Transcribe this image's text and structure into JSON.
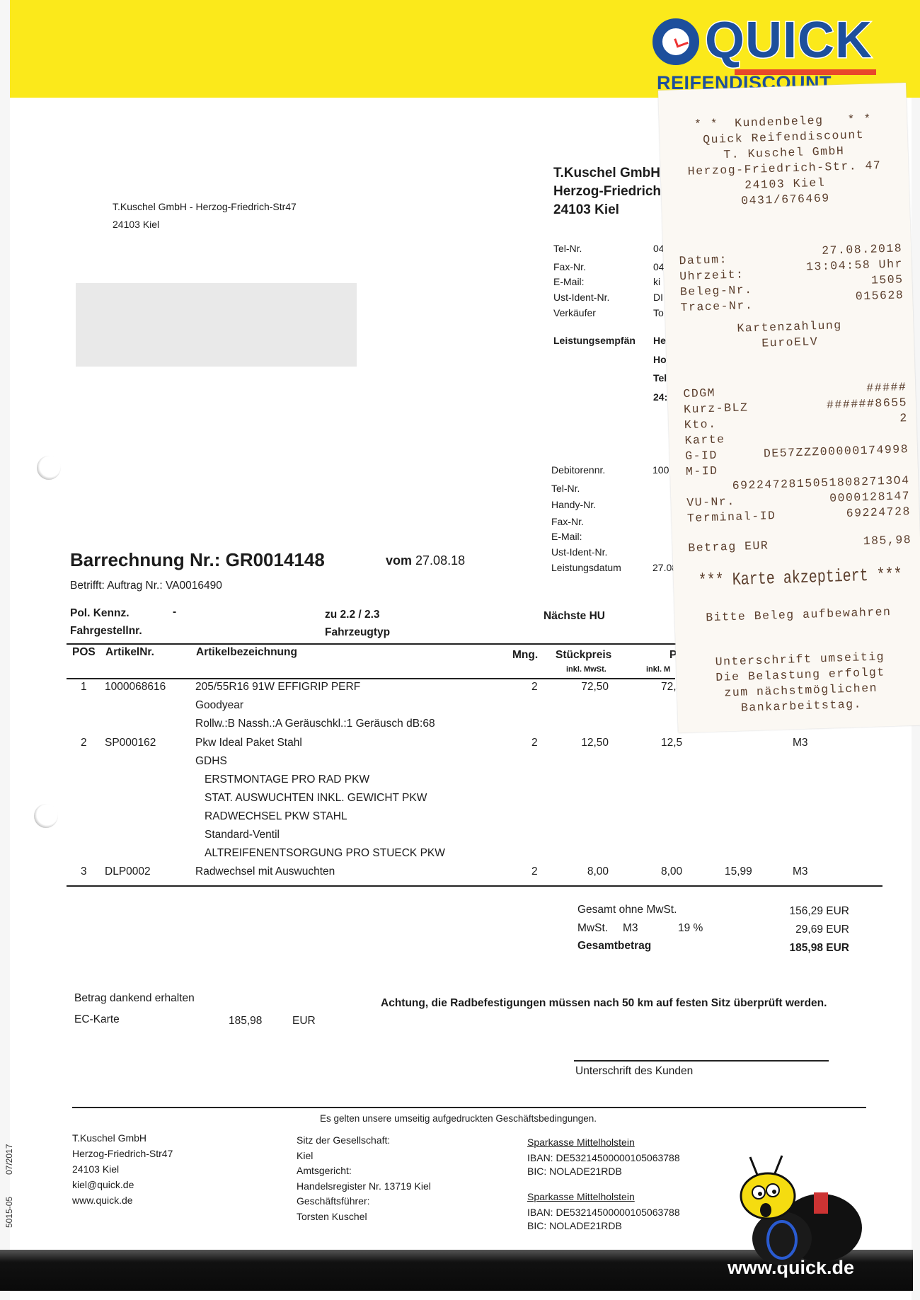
{
  "brand": {
    "logo_title": "QUICK",
    "logo_subtitle": "REIFENDISCOUNT",
    "website": "www.quick.de",
    "colors": {
      "yellow": "#fbe91b",
      "blue": "#1d4f9c",
      "red": "#e8482a"
    }
  },
  "sender_line": {
    "line1": "T.Kuschel GmbH - Herzog-Friedrich-Str47",
    "line2": "24103 Kiel"
  },
  "company": {
    "name": "T.Kuschel GmbH",
    "street": "Herzog-Friedrich",
    "city": "24103 Kiel"
  },
  "contact": [
    {
      "label": "Tel-Nr.",
      "value": "04"
    },
    {
      "label": "Fax-Nr.",
      "value": "04"
    },
    {
      "label": "E-Mail:",
      "value": "ki"
    },
    {
      "label": "Ust-Ident-Nr.",
      "value": "DI"
    },
    {
      "label": "Verkäufer",
      "value": "To"
    }
  ],
  "recipient": {
    "label": "Leistungsempfän",
    "lines": [
      "He",
      "Ho",
      "Tel",
      "24:"
    ]
  },
  "customer": [
    {
      "label": "Debitorennr.",
      "value": "100"
    },
    {
      "label": "Tel-Nr.",
      "value": ""
    },
    {
      "label": "Handy-Nr.",
      "value": ""
    },
    {
      "label": "Fax-Nr.",
      "value": ""
    },
    {
      "label": "E-Mail:",
      "value": ""
    },
    {
      "label": "Ust-Ident-Nr.",
      "value": ""
    },
    {
      "label": "Leistungsdatum",
      "value": "27.08"
    }
  ],
  "invoice": {
    "title": "Barrechnung Nr.: GR0014148",
    "vom_label": "vom",
    "date": "27.08.18",
    "betrifft": "Betrifft: Auftrag Nr.: VA0016490",
    "pol_kennz_label": "Pol. Kennz.",
    "pol_kennz_value": "-",
    "fahrgestell_label": "Fahrgestellnr.",
    "zu_label": "zu 2.2 / 2.3",
    "fahrzeugtyp_label": "Fahrzeugtyp",
    "naechste_hu_label": "Nächste HU"
  },
  "table": {
    "headers": {
      "pos": "POS",
      "artikelnr": "ArtikelNr.",
      "bez": "Artikelbezeichnung",
      "mng": "Mng.",
      "stueckpreis": "Stückpreis",
      "stueckpreis_sub": "inkl. MwSt.",
      "preis": "P",
      "preis_sub": "inkl. M"
    },
    "rows": [
      {
        "pos": "1",
        "artikelnr": "1000068616",
        "bez": "205/55R16 91W EFFIGRIP PERF",
        "mng": "2",
        "stueckpreis": "72,50",
        "preis": "72,5",
        "gesamt": "",
        "mwst": "",
        "details": [
          "Goodyear",
          "Rollw.:B  Nassh.:A  Geräuschkl.:1  Geräusch dB:68"
        ],
        "subitems": []
      },
      {
        "pos": "2",
        "artikelnr": "SP000162",
        "bez": "Pkw Ideal Paket Stahl",
        "mng": "2",
        "stueckpreis": "12,50",
        "preis": "12,5",
        "gesamt": "",
        "mwst": "M3",
        "details": [
          "GDHS"
        ],
        "subitems": [
          "ERSTMONTAGE PRO RAD PKW",
          "STAT. AUSWUCHTEN INKL. GEWICHT PKW",
          "RADWECHSEL PKW STAHL",
          "Standard-Ventil",
          "ALTREIFENENTSORGUNG PRO STUECK PKW"
        ]
      },
      {
        "pos": "3",
        "artikelnr": "DLP0002",
        "bez": "Radwechsel mit Auswuchten",
        "mng": "2",
        "stueckpreis": "8,00",
        "preis": "8,00",
        "gesamt": "15,99",
        "mwst": "M3",
        "details": [],
        "subitems": []
      }
    ]
  },
  "totals": {
    "netto_label": "Gesamt ohne MwSt.",
    "netto": "156,29 EUR",
    "mwst_label": "MwSt.",
    "mwst_code": "M3",
    "mwst_rate": "19 %",
    "mwst": "29,69 EUR",
    "gesamt_label": "Gesamtbetrag",
    "gesamt": "185,98 EUR"
  },
  "payment": {
    "received_label": "Betrag dankend erhalten",
    "method": "EC-Karte",
    "amount": "185,98",
    "currency": "EUR"
  },
  "notice": "Achtung, die Radbefestigungen müssen nach 50 km  auf festen Sitz überprüft werden.",
  "signature_label": "Unterschrift des Kunden",
  "terms": "Es gelten unsere umseitig aufgedruckten  Geschäftsbedingungen.",
  "footer": {
    "col1": [
      "T.Kuschel GmbH",
      "Herzog-Friedrich-Str47",
      "24103 Kiel",
      "kiel@quick.de",
      "www.quick.de"
    ],
    "col2": [
      "Sitz der Gesellschaft:",
      "Kiel",
      "Amtsgericht:",
      "Handelsregister Nr.  13719 Kiel",
      "Geschäftsführer:",
      "Torsten Kuschel"
    ],
    "banks": [
      {
        "name": "Sparkasse Mittelholstein",
        "iban": "IBAN: DE53214500000105063788",
        "bic": "BIC: NOLADE21RDB"
      },
      {
        "name": "Sparkasse Mittelholstein",
        "iban": "IBAN: DE53214500000105063788",
        "bic": "BIC: NOLADE21RDB"
      }
    ],
    "form_code": "5015-05",
    "form_date": "07/2017"
  },
  "receipt": {
    "header": [
      "* *  Kundenbeleg   * *",
      "Quick Reifendiscount",
      "T. Kuschel GmbH",
      "Herzog-Friedrich-Str. 47",
      "24103 Kiel",
      "0431/676469"
    ],
    "fields": [
      {
        "label": "Datum:",
        "value": "27.08.2018"
      },
      {
        "label": "Uhrzeit:",
        "value": "13:04:58 Uhr"
      },
      {
        "label": "Beleg-Nr.",
        "value": "1505"
      },
      {
        "label": "Trace-Nr.",
        "value": "015628"
      }
    ],
    "payment_type": "Kartenzahlung",
    "scheme": "EuroELV",
    "card_fields": [
      {
        "label": "CDGM",
        "value": "#####"
      },
      {
        "label": "Kurz-BLZ",
        "value": "######8655"
      },
      {
        "label": "Kto.",
        "value": "2"
      },
      {
        "label": "Karte",
        "value": ""
      }
    ],
    "gid_label": "G-ID",
    "gid": "DE57ZZZ00000174998",
    "mid_label": "M-ID",
    "mid": "69224728150518082713O4",
    "vu_label": "VU-Nr.",
    "vu": "0000128147",
    "terminal_label": "Terminal-ID",
    "terminal": "69224728",
    "amount_label": "Betrag EUR",
    "amount": "185,98",
    "accepted": "*** Karte akzeptiert ***",
    "keep": "Bitte Beleg aufbewahren",
    "footer": [
      "Unterschrift umseitig",
      "Die Belastung erfolgt",
      "zum nächstmöglichen",
      "Bankarbeitstag."
    ]
  }
}
